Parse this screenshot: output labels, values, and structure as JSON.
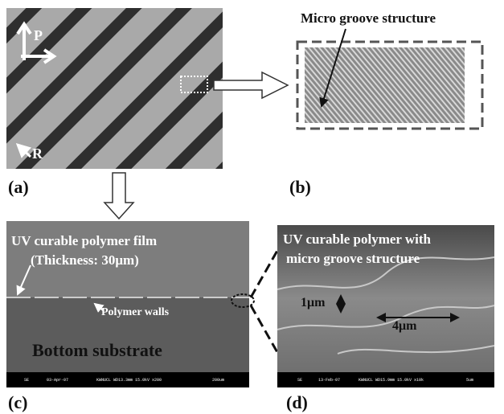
{
  "panels": [
    {
      "label": "(a)",
      "axes": [
        "P",
        "R"
      ]
    },
    {
      "label": "(b)",
      "title": "Micro groove structure"
    },
    {
      "label": "(c)",
      "film": "UV curable polymer film",
      "thickness": "(Thickness: 30μm)",
      "walls": "Polymer walls",
      "substrate": "Bottom substrate",
      "footer": [
        "SE",
        "03-Apr-07",
        "KWNUCL WD13.3mm 15.0kV x200",
        "200um"
      ]
    },
    {
      "label": "(d)",
      "title": [
        "UV curable polymer with",
        "micro groove structure"
      ],
      "height": "1μm",
      "width": "4μm",
      "footer": [
        "SE",
        "13-Feb-07",
        "KWNUCL WD15.9mm 15.0kV x10k",
        "5um"
      ]
    }
  ]
}
